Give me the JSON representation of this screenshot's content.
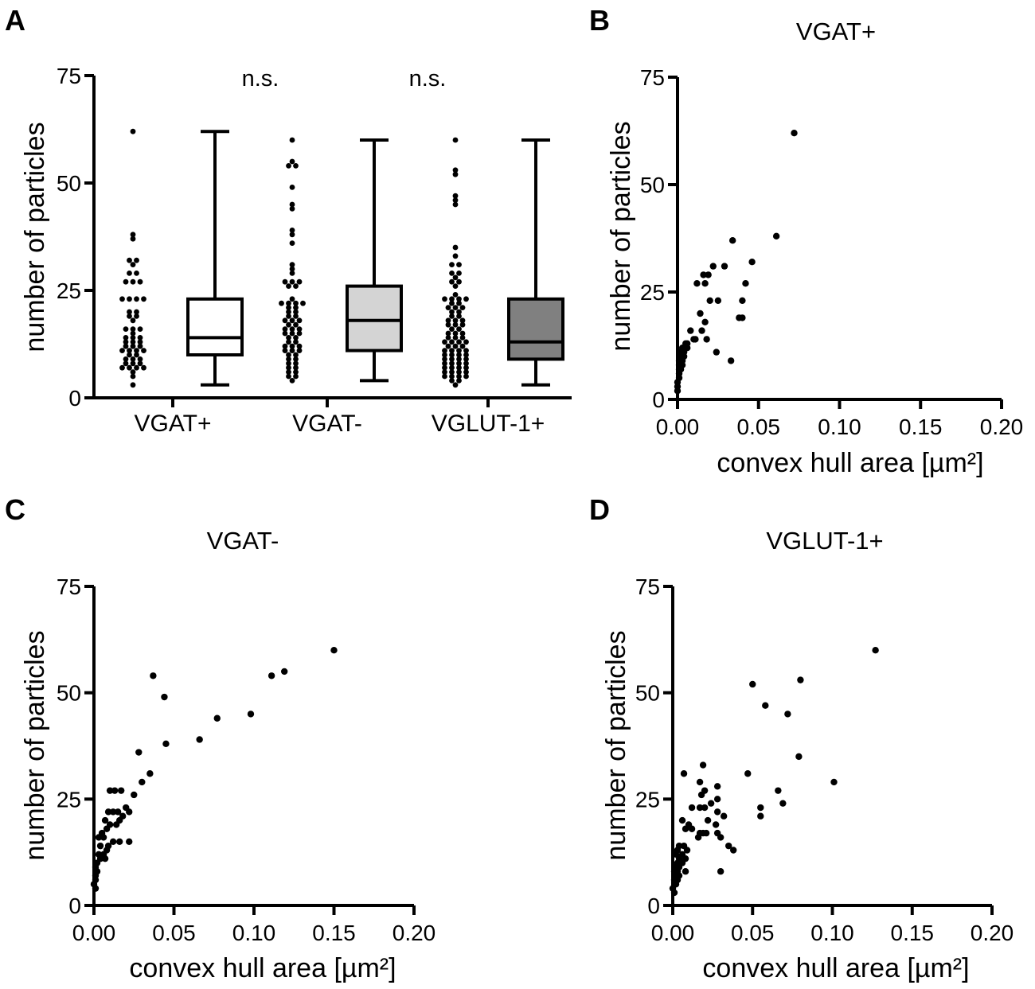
{
  "chart_data": [
    {
      "panel": "A",
      "type": "box",
      "ylabel": "number of particles",
      "ylim": [
        0,
        75
      ],
      "yticks": [
        "0",
        "25",
        "50",
        "75"
      ],
      "categories": [
        "VGAT+",
        "VGAT-",
        "VGLUT-1+"
      ],
      "annotations": [
        "n.s.",
        "n.s."
      ],
      "boxes": [
        {
          "name": "VGAT+",
          "min": 3,
          "q1": 10,
          "median": 14,
          "q3": 23,
          "max": 62,
          "color": "#ffffff"
        },
        {
          "name": "VGAT-",
          "min": 4,
          "q1": 11,
          "median": 18,
          "q3": 26,
          "max": 60,
          "color": "#d4d4d4"
        },
        {
          "name": "VGLUT-1+",
          "min": 3,
          "q1": 9,
          "median": 13,
          "q3": 23,
          "max": 60,
          "color": "#808080"
        }
      ],
      "points": [
        [
          62,
          38,
          37,
          32,
          32,
          31,
          29,
          29,
          27,
          27,
          27,
          23,
          23,
          23,
          23,
          20,
          20,
          19,
          19,
          18,
          16,
          16,
          16,
          15,
          14,
          14,
          14,
          13,
          13,
          13,
          12,
          12,
          12,
          11,
          11,
          11,
          11,
          10,
          10,
          9,
          9,
          9,
          8,
          8,
          8,
          7,
          7,
          7,
          7,
          6,
          5,
          3
        ],
        [
          60,
          55,
          54,
          54,
          49,
          45,
          44,
          39,
          38,
          36,
          31,
          30,
          29,
          27,
          27,
          27,
          26,
          26,
          23,
          22,
          22,
          22,
          22,
          21,
          21,
          20,
          20,
          19,
          19,
          18,
          18,
          18,
          17,
          17,
          16,
          16,
          16,
          15,
          15,
          15,
          14,
          14,
          13,
          13,
          12,
          12,
          12,
          11,
          11,
          11,
          10,
          10,
          9,
          9,
          8,
          8,
          7,
          7,
          6,
          6,
          5,
          5,
          4
        ],
        [
          60,
          53,
          52,
          47,
          46,
          45,
          35,
          33,
          31,
          31,
          29,
          29,
          28,
          27,
          27,
          26,
          24,
          23,
          23,
          23,
          23,
          22,
          22,
          21,
          21,
          21,
          20,
          20,
          19,
          19,
          18,
          18,
          18,
          17,
          17,
          17,
          16,
          16,
          15,
          15,
          15,
          14,
          14,
          14,
          13,
          13,
          13,
          13,
          12,
          12,
          12,
          11,
          11,
          11,
          11,
          10,
          10,
          10,
          10,
          9,
          9,
          9,
          9,
          8,
          8,
          8,
          8,
          7,
          7,
          7,
          7,
          6,
          6,
          6,
          6,
          5,
          5,
          5,
          5,
          4,
          4,
          3
        ]
      ]
    },
    {
      "panel": "B",
      "type": "scatter",
      "title": "VGAT+",
      "xlabel": "convex hull area [µm²]",
      "ylabel": "number of particles",
      "xlim": [
        0,
        0.2
      ],
      "ylim": [
        0,
        75
      ],
      "xticks": [
        "0.00",
        "0.05",
        "0.10",
        "0.15",
        "0.20"
      ],
      "yticks": [
        "0",
        "25",
        "50",
        "75"
      ],
      "points": [
        [
          0.072,
          62
        ],
        [
          0.061,
          38
        ],
        [
          0.034,
          37
        ],
        [
          0.046,
          32
        ],
        [
          0.022,
          31
        ],
        [
          0.029,
          31
        ],
        [
          0.019,
          29
        ],
        [
          0.016,
          29
        ],
        [
          0.012,
          27
        ],
        [
          0.017,
          27
        ],
        [
          0.042,
          27
        ],
        [
          0.02,
          23
        ],
        [
          0.025,
          23
        ],
        [
          0.04,
          23
        ],
        [
          0.014,
          20
        ],
        [
          0.04,
          19
        ],
        [
          0.038,
          19
        ],
        [
          0.017,
          18
        ],
        [
          0.015,
          16
        ],
        [
          0.008,
          16
        ],
        [
          0.018,
          14
        ],
        [
          0.01,
          14
        ],
        [
          0.011,
          14
        ],
        [
          0.006,
          13
        ],
        [
          0.005,
          13
        ],
        [
          0.003,
          12
        ],
        [
          0.006,
          12
        ],
        [
          0.004,
          11
        ],
        [
          0.024,
          11
        ],
        [
          0.002,
          11
        ],
        [
          0.002,
          10
        ],
        [
          0.004,
          10
        ],
        [
          0.001,
          9
        ],
        [
          0.033,
          9
        ],
        [
          0.003,
          9
        ],
        [
          0.001,
          8
        ],
        [
          0.003,
          8
        ],
        [
          0.001,
          7
        ],
        [
          0.002,
          7
        ],
        [
          0.001,
          6
        ],
        [
          0.001,
          5
        ],
        [
          0.0,
          4
        ],
        [
          0.0,
          3
        ],
        [
          0.0,
          2
        ]
      ]
    },
    {
      "panel": "C",
      "type": "scatter",
      "title": "VGAT-",
      "xlabel": "convex hull area [µm²]",
      "ylabel": "number of particles",
      "xlim": [
        0,
        0.2
      ],
      "ylim": [
        0,
        75
      ],
      "xticks": [
        "0.00",
        "0.05",
        "0.10",
        "0.15",
        "0.20"
      ],
      "yticks": [
        "0",
        "25",
        "50",
        "75"
      ],
      "points": [
        [
          0.15,
          60
        ],
        [
          0.119,
          55
        ],
        [
          0.111,
          54
        ],
        [
          0.037,
          54
        ],
        [
          0.044,
          49
        ],
        [
          0.098,
          45
        ],
        [
          0.077,
          44
        ],
        [
          0.066,
          39
        ],
        [
          0.045,
          38
        ],
        [
          0.028,
          36
        ],
        [
          0.035,
          31
        ],
        [
          0.03,
          29
        ],
        [
          0.025,
          26
        ],
        [
          0.013,
          27
        ],
        [
          0.017,
          27
        ],
        [
          0.01,
          27
        ],
        [
          0.02,
          23
        ],
        [
          0.015,
          22
        ],
        [
          0.022,
          22
        ],
        [
          0.009,
          22
        ],
        [
          0.012,
          22
        ],
        [
          0.018,
          21
        ],
        [
          0.007,
          20
        ],
        [
          0.016,
          20
        ],
        [
          0.01,
          19
        ],
        [
          0.014,
          19
        ],
        [
          0.008,
          18
        ],
        [
          0.005,
          17
        ],
        [
          0.003,
          16
        ],
        [
          0.006,
          16
        ],
        [
          0.022,
          15
        ],
        [
          0.012,
          15
        ],
        [
          0.016,
          15
        ],
        [
          0.004,
          14
        ],
        [
          0.009,
          14
        ],
        [
          0.008,
          13
        ],
        [
          0.003,
          12
        ],
        [
          0.006,
          12
        ],
        [
          0.004,
          11
        ],
        [
          0.007,
          11
        ],
        [
          0.002,
          10
        ],
        [
          0.001,
          9
        ],
        [
          0.002,
          8
        ],
        [
          0.001,
          7
        ],
        [
          0.001,
          6
        ],
        [
          0.0,
          5
        ],
        [
          0.001,
          4
        ]
      ]
    },
    {
      "panel": "D",
      "type": "scatter",
      "title": "VGLUT-1+",
      "xlabel": "convex hull area [µm²]",
      "ylabel": "number of particles",
      "xlim": [
        0,
        0.2
      ],
      "ylim": [
        0,
        75
      ],
      "xticks": [
        "0.00",
        "0.05",
        "0.10",
        "0.15",
        "0.20"
      ],
      "yticks": [
        "0",
        "25",
        "50",
        "75"
      ],
      "points": [
        [
          0.127,
          60
        ],
        [
          0.08,
          53
        ],
        [
          0.05,
          52
        ],
        [
          0.058,
          47
        ],
        [
          0.072,
          45
        ],
        [
          0.079,
          35
        ],
        [
          0.019,
          33
        ],
        [
          0.047,
          31
        ],
        [
          0.007,
          31
        ],
        [
          0.101,
          29
        ],
        [
          0.017,
          29
        ],
        [
          0.028,
          28
        ],
        [
          0.066,
          27
        ],
        [
          0.02,
          27
        ],
        [
          0.018,
          26
        ],
        [
          0.028,
          25
        ],
        [
          0.069,
          24
        ],
        [
          0.024,
          24
        ],
        [
          0.012,
          23
        ],
        [
          0.055,
          23
        ],
        [
          0.02,
          23
        ],
        [
          0.017,
          23
        ],
        [
          0.028,
          22
        ],
        [
          0.055,
          21
        ],
        [
          0.032,
          21
        ],
        [
          0.022,
          20
        ],
        [
          0.006,
          20
        ],
        [
          0.01,
          19
        ],
        [
          0.027,
          19
        ],
        [
          0.008,
          18
        ],
        [
          0.012,
          18
        ],
        [
          0.019,
          17
        ],
        [
          0.017,
          17
        ],
        [
          0.021,
          17
        ],
        [
          0.028,
          17
        ],
        [
          0.016,
          16
        ],
        [
          0.03,
          16
        ],
        [
          0.035,
          14
        ],
        [
          0.004,
          14
        ],
        [
          0.007,
          14
        ],
        [
          0.009,
          13
        ],
        [
          0.038,
          13
        ],
        [
          0.003,
          13
        ],
        [
          0.006,
          12
        ],
        [
          0.002,
          12
        ],
        [
          0.004,
          11
        ],
        [
          0.008,
          11
        ],
        [
          0.003,
          10
        ],
        [
          0.006,
          10
        ],
        [
          0.002,
          9
        ],
        [
          0.004,
          9
        ],
        [
          0.001,
          8
        ],
        [
          0.008,
          8
        ],
        [
          0.03,
          8
        ],
        [
          0.003,
          8
        ],
        [
          0.002,
          7
        ],
        [
          0.004,
          7
        ],
        [
          0.001,
          6
        ],
        [
          0.003,
          6
        ],
        [
          0.002,
          5
        ],
        [
          0.0,
          4
        ],
        [
          0.001,
          3
        ]
      ]
    }
  ]
}
